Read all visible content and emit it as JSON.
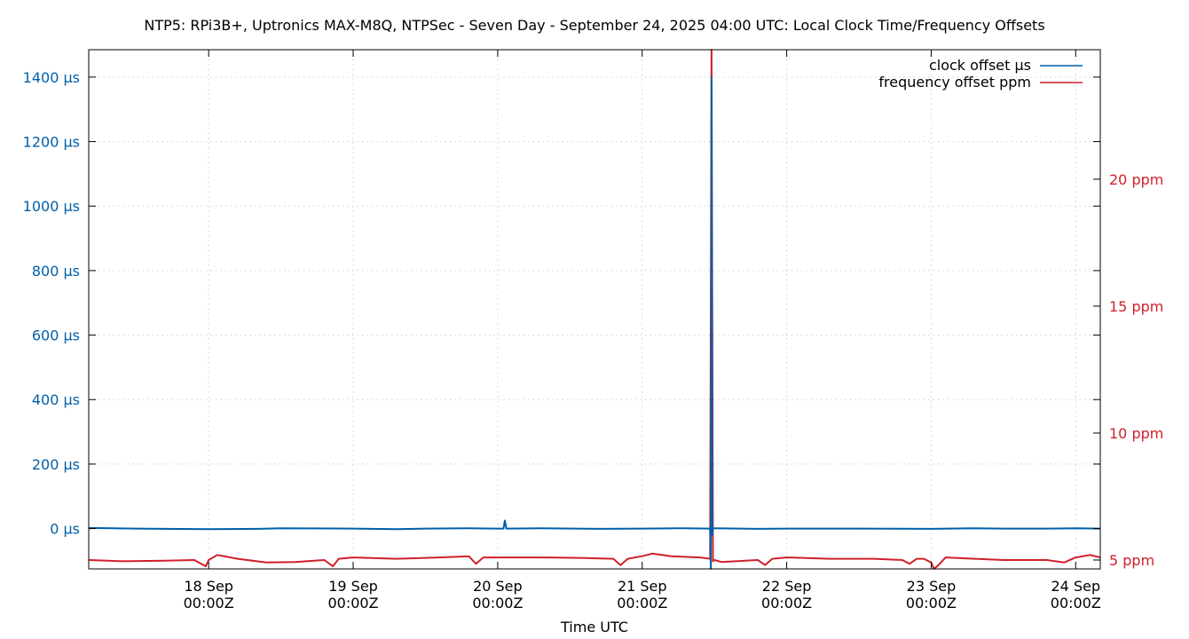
{
  "chart_data": {
    "type": "line",
    "title": "NTP5: RPi3B+, Uptronics MAX-M8Q, NTPSec - Seven Day - September 24, 2025 04:00 UTC: Local Clock Time/Frequency Offsets",
    "xlabel": "Time UTC",
    "ylabel": "",
    "y2label": "",
    "x_range_days": [
      17.17,
      24.17
    ],
    "ylim": [
      -125,
      1485
    ],
    "y2lim": [
      4.65,
      25.1
    ],
    "y_ticks": [
      {
        "value": 0,
        "label": "0 µs"
      },
      {
        "value": 200,
        "label": "200 µs"
      },
      {
        "value": 400,
        "label": "400 µs"
      },
      {
        "value": 600,
        "label": "600 µs"
      },
      {
        "value": 800,
        "label": "800 µs"
      },
      {
        "value": 1000,
        "label": "1000 µs"
      },
      {
        "value": 1200,
        "label": "1200 µs"
      },
      {
        "value": 1400,
        "label": "1400 µs"
      }
    ],
    "y2_ticks": [
      {
        "value": 5,
        "label": "5 ppm"
      },
      {
        "value": 10,
        "label": "10 ppm"
      },
      {
        "value": 15,
        "label": "15 ppm"
      },
      {
        "value": 20,
        "label": "20 ppm"
      }
    ],
    "x_ticks": [
      {
        "day": 18,
        "line1": "18 Sep",
        "line2": "00:00Z"
      },
      {
        "day": 19,
        "line1": "19 Sep",
        "line2": "00:00Z"
      },
      {
        "day": 20,
        "line1": "20 Sep",
        "line2": "00:00Z"
      },
      {
        "day": 21,
        "line1": "21 Sep",
        "line2": "00:00Z"
      },
      {
        "day": 22,
        "line1": "22 Sep",
        "line2": "00:00Z"
      },
      {
        "day": 23,
        "line1": "23 Sep",
        "line2": "00:00Z"
      },
      {
        "day": 24,
        "line1": "24 Sep",
        "line2": "00:00Z"
      }
    ],
    "grid": true,
    "legend_position": "top-right",
    "series": [
      {
        "name": "clock offset µs",
        "axis": "left",
        "color": "#005fa8",
        "x": [
          17.17,
          17.5,
          18.0,
          18.35,
          18.5,
          19.0,
          19.3,
          19.5,
          19.8,
          20.0,
          20.04,
          20.05,
          20.06,
          20.3,
          20.7,
          21.0,
          21.3,
          21.47,
          21.475,
          21.48,
          21.485,
          21.49,
          21.5,
          21.8,
          22.0,
          22.5,
          23.0,
          23.3,
          23.5,
          23.8,
          24.0,
          24.17
        ],
        "y": [
          2,
          0,
          -2,
          -1,
          1,
          0,
          -2,
          0,
          1,
          0,
          0,
          25,
          0,
          1,
          -1,
          0,
          1,
          0,
          -130,
          1400,
          -20,
          0,
          1,
          -1,
          0,
          0,
          -1,
          1,
          0,
          0,
          1,
          0
        ]
      },
      {
        "name": "frequency offset ppm",
        "axis": "right",
        "color": "#d0202a",
        "x": [
          17.17,
          17.4,
          17.7,
          17.9,
          17.98,
          18.0,
          18.06,
          18.2,
          18.4,
          18.6,
          18.8,
          18.86,
          18.9,
          19.0,
          19.3,
          19.6,
          19.8,
          19.85,
          19.9,
          20.0,
          20.3,
          20.6,
          20.8,
          20.85,
          20.9,
          21.0,
          21.07,
          21.2,
          21.4,
          21.47,
          21.48,
          21.49,
          21.5,
          21.55,
          21.8,
          21.85,
          21.9,
          22.0,
          22.3,
          22.6,
          22.8,
          22.85,
          22.9,
          22.95,
          23.0,
          23.02,
          23.05,
          23.1,
          23.3,
          23.5,
          23.7,
          23.8,
          23.92,
          24.0,
          24.1,
          24.17
        ],
        "y": [
          5.0,
          4.95,
          4.97,
          5.0,
          4.75,
          5.0,
          5.2,
          5.05,
          4.9,
          4.92,
          5.0,
          4.75,
          5.05,
          5.1,
          5.05,
          5.1,
          5.15,
          4.85,
          5.1,
          5.1,
          5.1,
          5.08,
          5.05,
          4.8,
          5.05,
          5.15,
          5.25,
          5.15,
          5.1,
          5.05,
          25.1,
          4.95,
          5.0,
          4.92,
          5.0,
          4.8,
          5.05,
          5.1,
          5.05,
          5.05,
          5.0,
          4.85,
          5.05,
          5.05,
          4.9,
          4.4,
          4.8,
          5.1,
          5.05,
          5.0,
          5.0,
          5.0,
          4.9,
          5.1,
          5.2,
          5.1
        ]
      }
    ]
  }
}
